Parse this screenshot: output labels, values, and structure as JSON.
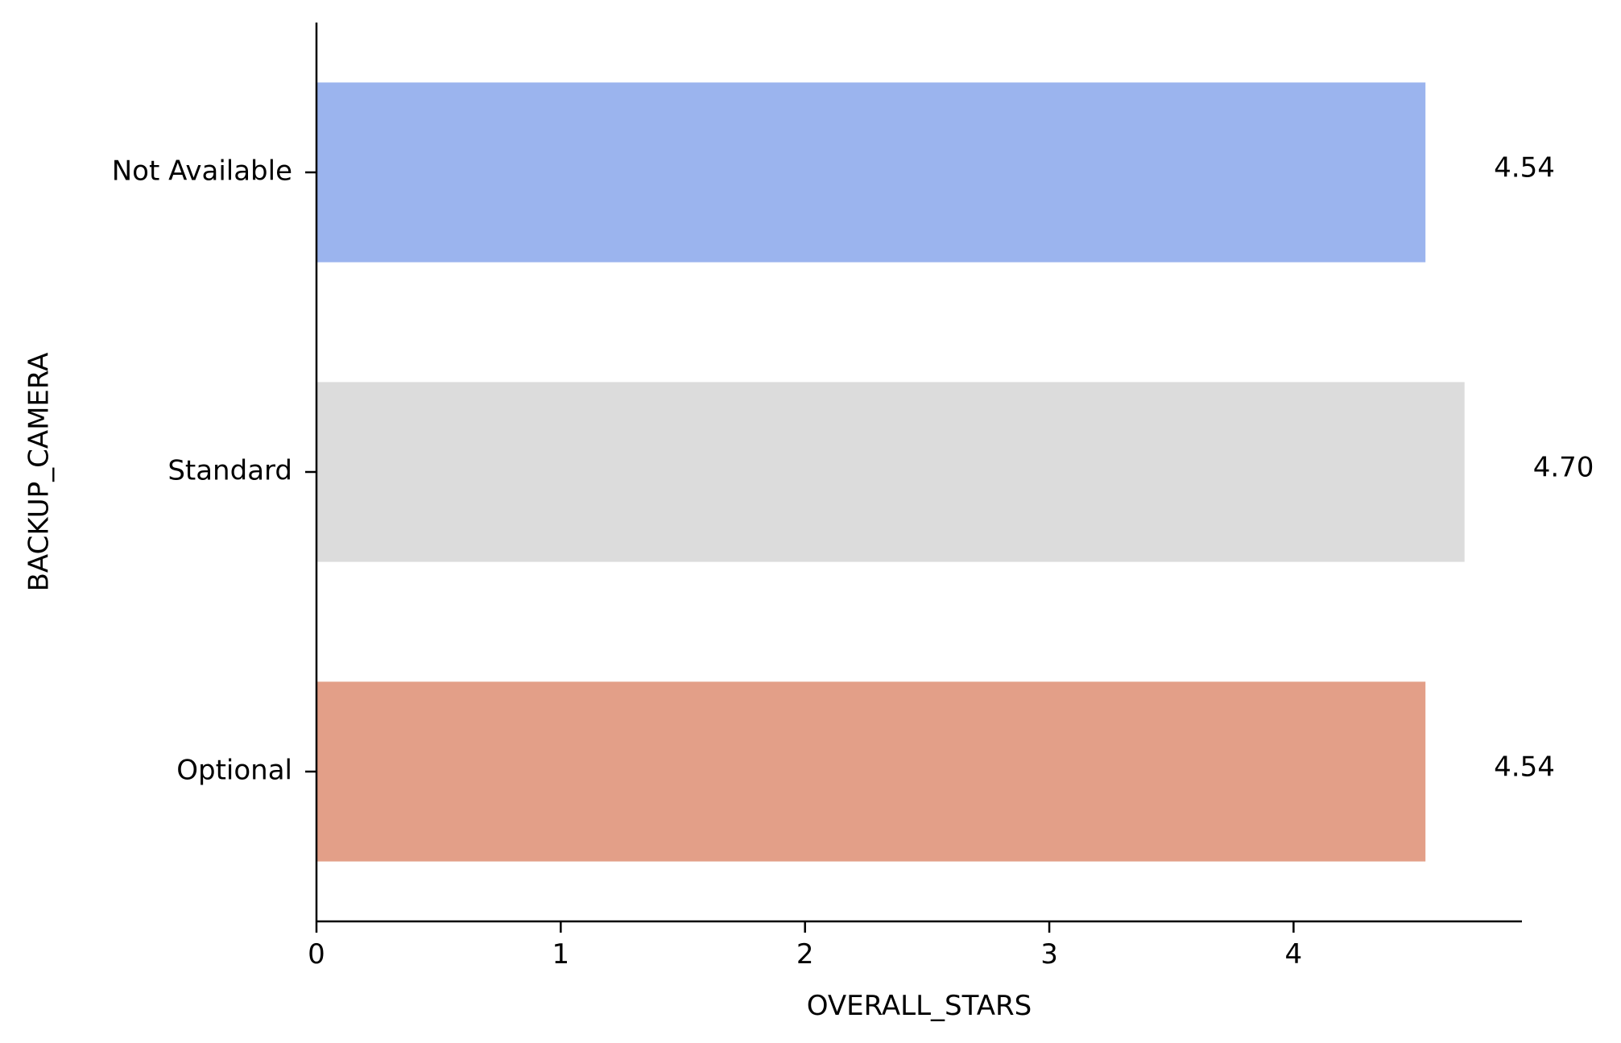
{
  "chart_data": {
    "type": "bar",
    "orientation": "horizontal",
    "categories": [
      "Not Available",
      "Standard",
      "Optional"
    ],
    "values": [
      4.54,
      4.7,
      4.54
    ],
    "data_labels": [
      "4.54",
      "4.70",
      "4.54"
    ],
    "colors": [
      "#9bb4ee",
      "#dcdcdc",
      "#e39f88"
    ],
    "title": "",
    "xlabel": "OVERALL_STARS",
    "ylabel": "BACKUP_CAMERA",
    "xlim": [
      0,
      4.935
    ],
    "xticks": [
      0,
      1,
      2,
      3,
      4
    ],
    "xtick_labels": [
      "0",
      "1",
      "2",
      "3",
      "4"
    ],
    "grid": false,
    "legend": "none"
  }
}
